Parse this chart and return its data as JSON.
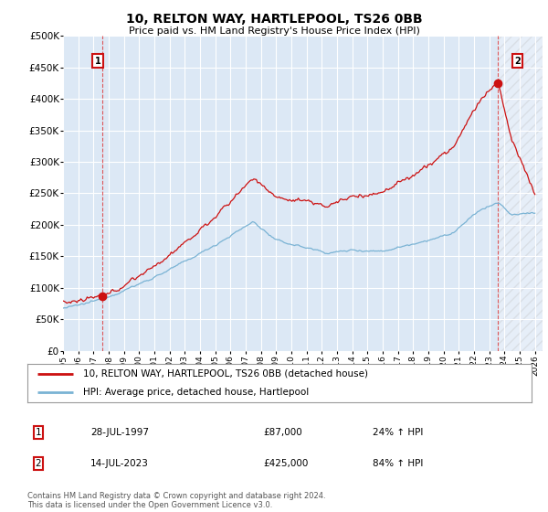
{
  "title": "10, RELTON WAY, HARTLEPOOL, TS26 0BB",
  "subtitle": "Price paid vs. HM Land Registry's House Price Index (HPI)",
  "ylim": [
    0,
    500000
  ],
  "yticks": [
    0,
    50000,
    100000,
    150000,
    200000,
    250000,
    300000,
    350000,
    400000,
    450000,
    500000
  ],
  "ytick_labels": [
    "£0",
    "£50K",
    "£100K",
    "£150K",
    "£200K",
    "£250K",
    "£300K",
    "£350K",
    "£400K",
    "£450K",
    "£500K"
  ],
  "xlim_start": 1995.0,
  "xlim_end": 2026.5,
  "xticks": [
    1995,
    1996,
    1997,
    1998,
    1999,
    2000,
    2001,
    2002,
    2003,
    2004,
    2005,
    2006,
    2007,
    2008,
    2009,
    2010,
    2011,
    2012,
    2013,
    2014,
    2015,
    2016,
    2017,
    2018,
    2019,
    2020,
    2021,
    2022,
    2023,
    2024,
    2025,
    2026
  ],
  "background_color": "#dce8f5",
  "grid_color": "#ffffff",
  "hpi_line_color": "#7ab3d4",
  "price_line_color": "#cc1111",
  "sale1_x": 1997.57,
  "sale1_y": 87000,
  "sale1_label": "1",
  "sale1_date": "28-JUL-1997",
  "sale1_price": "£87,000",
  "sale1_hpi": "24% ↑ HPI",
  "sale2_x": 2023.54,
  "sale2_y": 425000,
  "sale2_label": "2",
  "sale2_date": "14-JUL-2023",
  "sale2_price": "£425,000",
  "sale2_hpi": "84% ↑ HPI",
  "legend_line1": "10, RELTON WAY, HARTLEPOOL, TS26 0BB (detached house)",
  "legend_line2": "HPI: Average price, detached house, Hartlepool",
  "footnote": "Contains HM Land Registry data © Crown copyright and database right 2024.\nThis data is licensed under the Open Government Licence v3.0."
}
